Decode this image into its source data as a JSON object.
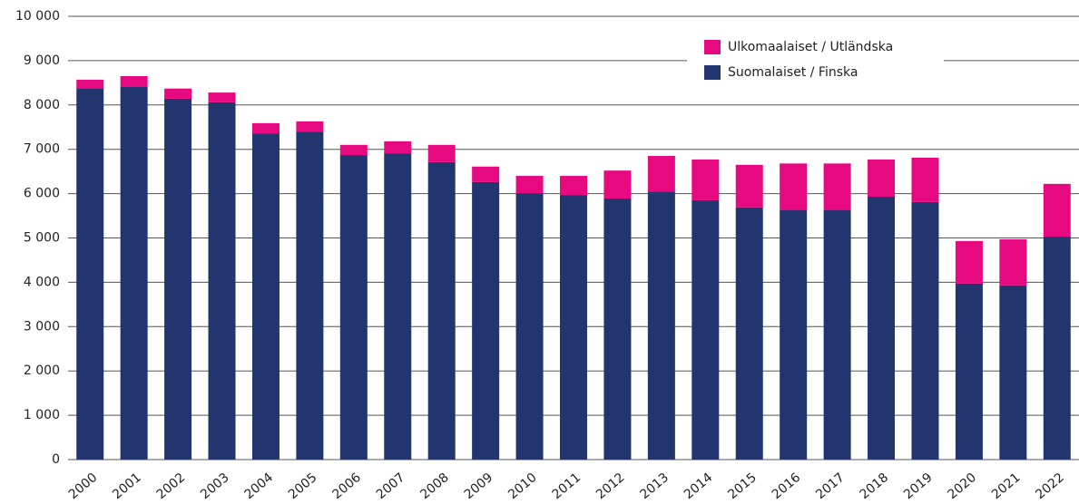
{
  "chart_data": {
    "type": "stacked_bar",
    "categories": [
      "2000",
      "2001",
      "2002",
      "2003",
      "2004",
      "2005",
      "2006",
      "2007",
      "2008",
      "2009",
      "2010",
      "2011",
      "2012",
      "2013",
      "2014",
      "2015",
      "2016",
      "2017",
      "2018",
      "2019",
      "2020",
      "2021",
      "2022"
    ],
    "series": [
      {
        "name": "Suomalaiset / Finska",
        "color": "#22356f",
        "values": [
          8380,
          8420,
          8140,
          8060,
          7360,
          7400,
          6870,
          6910,
          6710,
          6260,
          6010,
          5970,
          5890,
          6050,
          5850,
          5690,
          5640,
          5640,
          5930,
          5810,
          3970,
          3930,
          5030
        ]
      },
      {
        "name": "Ulkomaalaiset / Utländska",
        "color": "#e6097f",
        "values": [
          190,
          230,
          230,
          220,
          230,
          230,
          230,
          270,
          390,
          350,
          390,
          430,
          630,
          800,
          920,
          960,
          1040,
          1040,
          840,
          1000,
          960,
          1040,
          1190
        ]
      }
    ],
    "ylim": [
      0,
      10000
    ],
    "yticks": [
      0,
      {
        "value": 1000,
        "label": "1 000"
      },
      {
        "value": 2000,
        "label": "2 000"
      },
      {
        "value": 3000,
        "label": "3 000"
      },
      {
        "value": 4000,
        "label": "4 000"
      },
      {
        "value": 5000,
        "label": "5 000"
      },
      {
        "value": 6000,
        "label": "6 000"
      },
      {
        "value": 7000,
        "label": "7 000"
      },
      {
        "value": 8000,
        "label": "8 000"
      },
      {
        "value": 9000,
        "label": "9 000"
      },
      {
        "value": 10000,
        "label": "10 000"
      }
    ],
    "grid": true,
    "legend": "top-right"
  }
}
